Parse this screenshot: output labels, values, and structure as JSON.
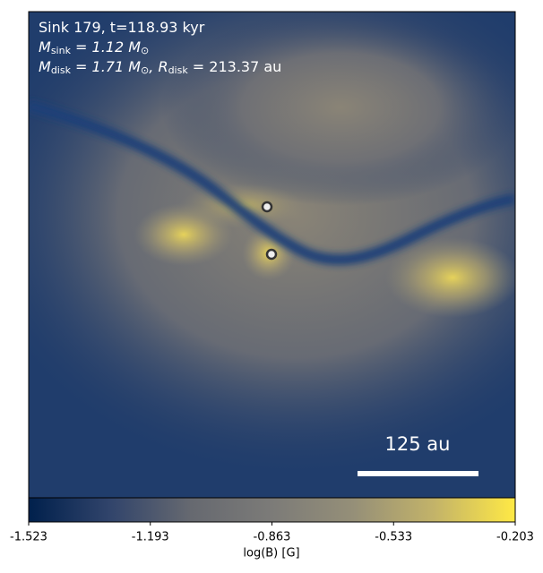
{
  "chart_data": {
    "type": "image",
    "annotations": [
      [
        {
          "text": "Sink 179, t=118.93 kyr"
        }
      ],
      [
        {
          "text": "M"
        },
        {
          "sub": "sink"
        },
        {
          "text": " = 1.12 M"
        },
        {
          "sub": "⊙"
        }
      ],
      [
        {
          "text": "M"
        },
        {
          "sub": "disk"
        },
        {
          "text": " = 1.71 M"
        },
        {
          "sub": "⊙"
        },
        {
          "text": ", R"
        },
        {
          "sub": "disk"
        },
        {
          "text": " = 213.37 au"
        }
      ]
    ],
    "scale_bar_label": "125 au",
    "colorbar_label": "log(B) [G]",
    "clim": [
      -1.523,
      -0.203
    ],
    "cticks": [
      -1.523,
      -1.193,
      -0.863,
      -0.533,
      -0.203
    ],
    "colormap": [
      "#00204c",
      "#31446b",
      "#666970",
      "#7c7b78",
      "#958f78",
      "#c3b369",
      "#ffe945"
    ]
  }
}
